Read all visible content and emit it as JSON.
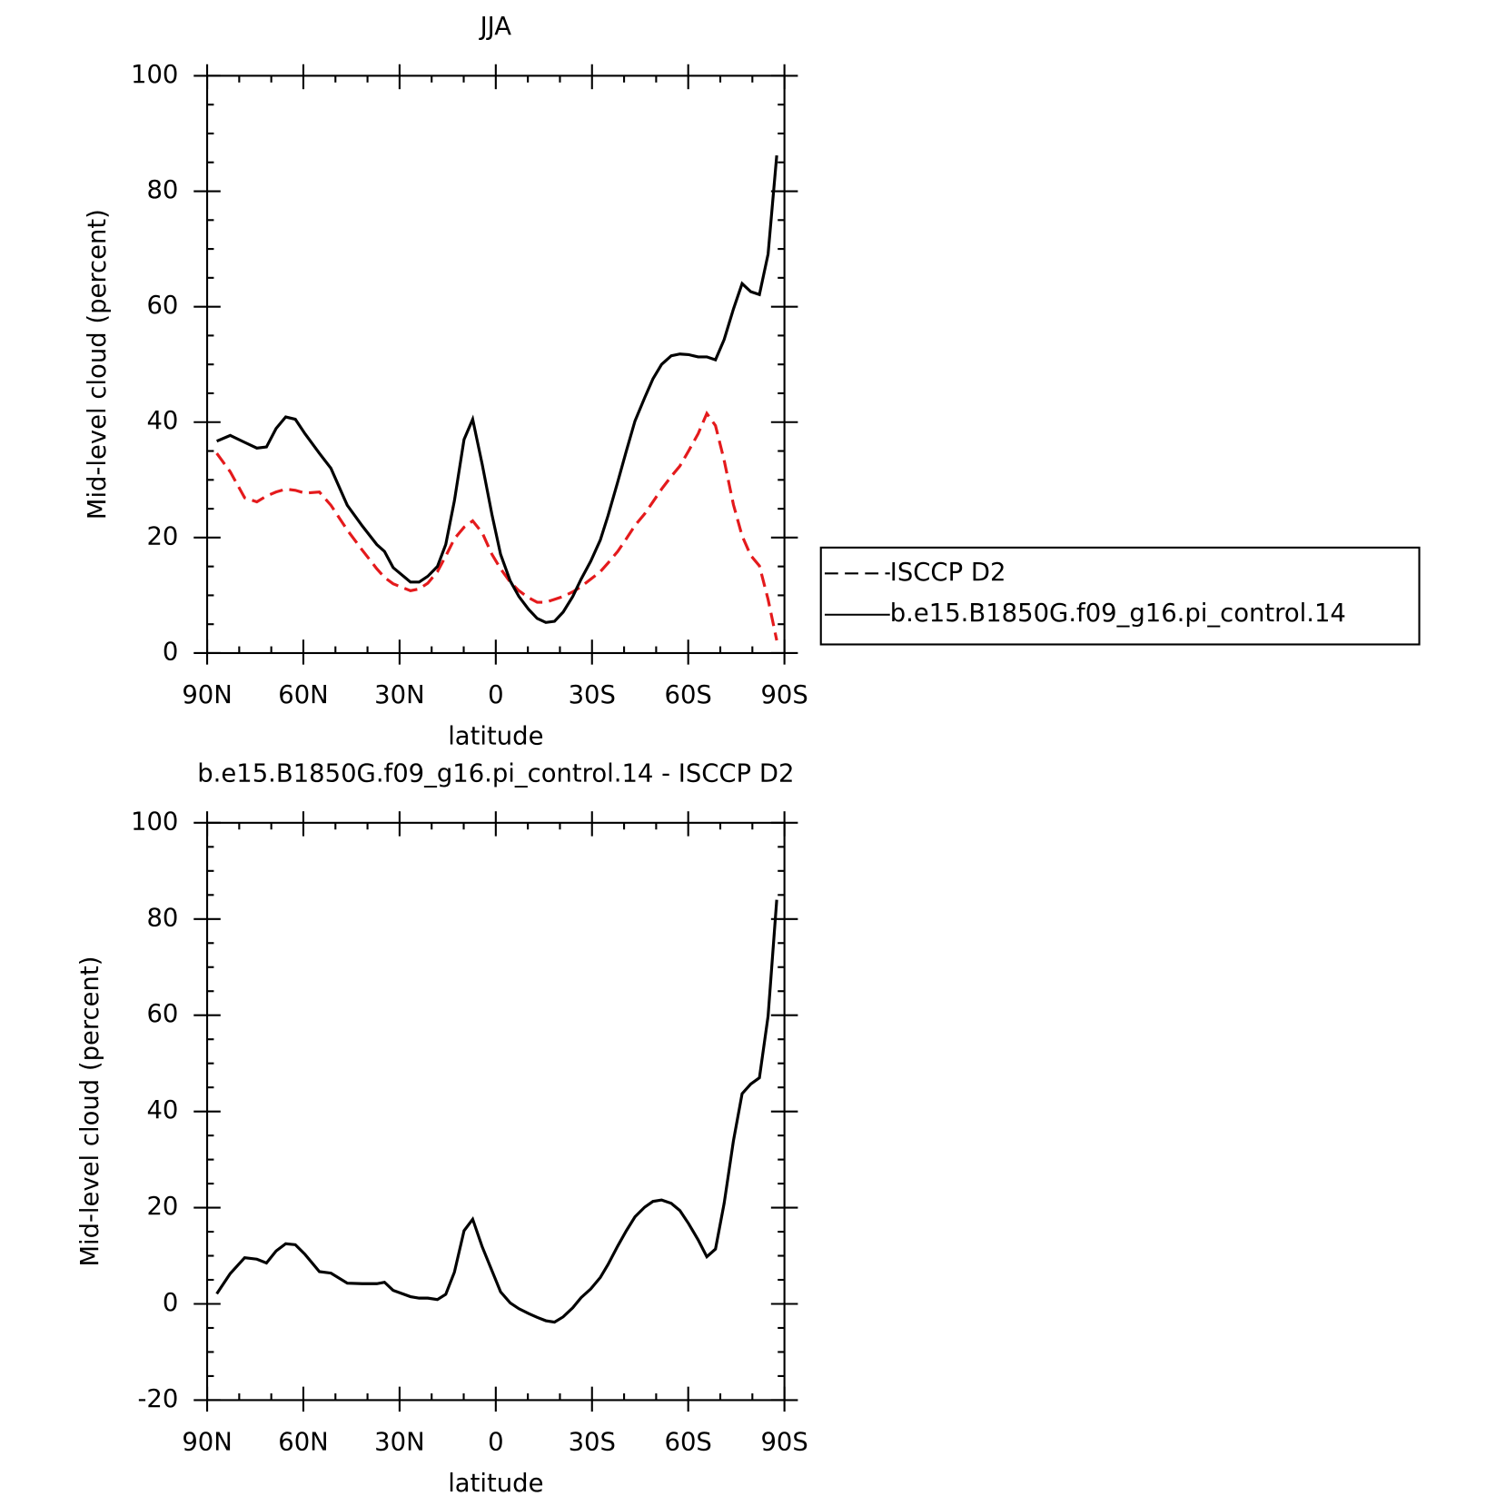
{
  "chart_data": [
    {
      "type": "line",
      "title": "JJA",
      "xlabel": "latitude",
      "ylabel": "Mid-level cloud (percent)",
      "x": [
        87,
        82.8,
        78.3,
        74.5,
        71.5,
        68.5,
        65.5,
        62.5,
        59.5,
        55,
        51.4,
        46.3,
        41.6,
        37.1,
        34.7,
        32,
        26.6,
        23.9,
        21.2,
        18.2,
        15.6,
        12.9,
        9.9,
        7.2,
        4.2,
        1.2,
        -1.5,
        -4.5,
        -7.2,
        -10.2,
        -12.9,
        -15.6,
        -18.3,
        -21,
        -24,
        -26.6,
        -29.6,
        -32.6,
        -35,
        -38,
        -40.7,
        -43.4,
        -46.4,
        -49,
        -51.7,
        -54.7,
        -57.4,
        -60.1,
        -63.1,
        -65.8,
        -68.5,
        -71.2,
        -74.1,
        -76.8,
        -79.5,
        -82.2,
        -84.9,
        -87.6
      ],
      "series": [
        {
          "name": "ISCCP D2",
          "color": "#e41a1c",
          "dash": true,
          "values": [
            34.6,
            31.4,
            26.9,
            26.2,
            27.2,
            27.9,
            28.4,
            28.2,
            27.7,
            27.9,
            25.6,
            21.3,
            17.8,
            14.6,
            13.1,
            12,
            10.8,
            11.1,
            12.1,
            14.1,
            16.8,
            19.8,
            21.8,
            22.9,
            20.8,
            17.1,
            14.6,
            12.3,
            10.8,
            9.6,
            8.8,
            8.8,
            9.3,
            9.8,
            10.6,
            11.5,
            12.8,
            14.1,
            15.6,
            17.6,
            19.8,
            22.1,
            24.1,
            26.2,
            28.4,
            30.6,
            32.4,
            35,
            38,
            41.5,
            39.4,
            33.4,
            25.7,
            20.3,
            16.9,
            15.1,
            9.3,
            2.2
          ]
        },
        {
          "name": "b.e15.B1850G.f09_g16.pi_control.14",
          "color": "#000000",
          "dash": false,
          "values": [
            36.7,
            37.7,
            36.5,
            35.5,
            35.7,
            38.9,
            40.9,
            40.5,
            38,
            34.6,
            32,
            25.6,
            22,
            18.8,
            17.6,
            14.8,
            12.3,
            12.3,
            13.3,
            15,
            18.8,
            26.4,
            37,
            40.5,
            32.6,
            24,
            17.1,
            12.5,
            9.8,
            7.6,
            6,
            5.3,
            5.5,
            7.1,
            9.8,
            12.8,
            15.9,
            19.6,
            23.8,
            29.6,
            35,
            40.2,
            44.2,
            47.5,
            50,
            51.5,
            51.8,
            51.7,
            51.3,
            51.3,
            50.8,
            54.3,
            59.6,
            64,
            62.6,
            62.1,
            69.1,
            86.2
          ]
        }
      ],
      "xlim": [
        90,
        -90
      ],
      "xticks": [
        {
          "value": 90,
          "label": "90N"
        },
        {
          "value": 60,
          "label": "60N"
        },
        {
          "value": 30,
          "label": "30N"
        },
        0,
        {
          "value": -30,
          "label": "30S"
        },
        {
          "value": -60,
          "label": "60S"
        },
        {
          "value": -90,
          "label": "90S"
        }
      ],
      "xminorticks": [
        80,
        70,
        50,
        40,
        20,
        10,
        -10,
        -20,
        -40,
        -50,
        -70,
        -80
      ],
      "ylim": [
        0,
        100
      ],
      "yticks": [
        0,
        20,
        40,
        60,
        80,
        100
      ],
      "yminorticks": [
        5,
        10,
        15,
        25,
        30,
        35,
        45,
        50,
        55,
        65,
        70,
        75,
        85,
        90,
        95
      ],
      "legend": "right"
    },
    {
      "type": "line",
      "title": "b.e15.B1850G.f09_g16.pi_control.14 - ISCCP D2",
      "xlabel": "latitude",
      "ylabel": "Mid-level cloud (percent)",
      "x": [
        87,
        82.8,
        78.3,
        74.5,
        71.5,
        68.5,
        65.5,
        62.5,
        59.5,
        55,
        51.4,
        46.3,
        41.6,
        37.1,
        34.7,
        32,
        26.6,
        23.9,
        21.2,
        18.2,
        15.6,
        12.9,
        9.9,
        7.2,
        4.2,
        1.2,
        -1.5,
        -4.5,
        -7.2,
        -10.2,
        -12.9,
        -15.6,
        -18.3,
        -21,
        -24,
        -26.6,
        -29.6,
        -32.6,
        -35,
        -38,
        -40.7,
        -43.4,
        -46.4,
        -49,
        -51.7,
        -54.7,
        -57.4,
        -60.1,
        -63.1,
        -65.8,
        -68.5,
        -71.2,
        -74.1,
        -76.8,
        -79.5,
        -82.2,
        -84.9,
        -87.6
      ],
      "color": "#000000",
      "values": [
        2.1,
        6.3,
        9.6,
        9.3,
        8.5,
        11,
        12.5,
        12.3,
        10.3,
        6.7,
        6.4,
        4.3,
        4.2,
        4.2,
        4.5,
        2.8,
        1.5,
        1.2,
        1.2,
        0.9,
        2,
        6.6,
        15.2,
        17.6,
        11.8,
        6.9,
        2.5,
        0.2,
        -1,
        -2,
        -2.8,
        -3.5,
        -3.8,
        -2.7,
        -0.8,
        1.3,
        3.1,
        5.5,
        8.2,
        12,
        15.2,
        18.1,
        20.1,
        21.3,
        21.6,
        20.9,
        19.4,
        16.7,
        13.3,
        9.8,
        11.4,
        20.9,
        33.9,
        43.7,
        45.7,
        47,
        59.8,
        84
      ],
      "xlim": [
        90,
        -90
      ],
      "xticks": [
        {
          "value": 90,
          "label": "90N"
        },
        {
          "value": 60,
          "label": "60N"
        },
        {
          "value": 30,
          "label": "30N"
        },
        0,
        {
          "value": -30,
          "label": "30S"
        },
        {
          "value": -60,
          "label": "60S"
        },
        {
          "value": -90,
          "label": "90S"
        }
      ],
      "xminorticks": [
        80,
        70,
        50,
        40,
        20,
        10,
        -10,
        -20,
        -40,
        -50,
        -70,
        -80
      ],
      "ylim": [
        -20,
        100
      ],
      "yticks": [
        -20,
        0,
        20,
        40,
        60,
        80,
        100
      ],
      "yminorticks": [
        -15,
        -10,
        -5,
        5,
        10,
        15,
        25,
        30,
        35,
        45,
        50,
        55,
        65,
        70,
        75,
        85,
        90,
        95
      ]
    }
  ]
}
